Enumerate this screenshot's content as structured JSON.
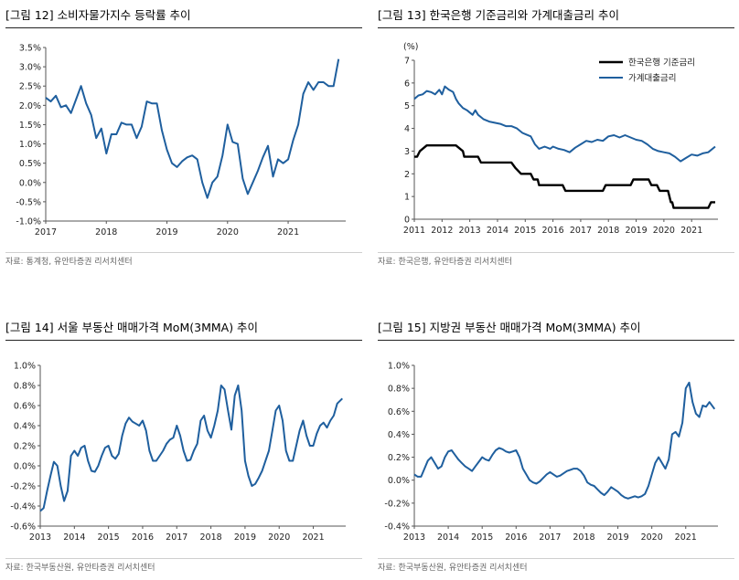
{
  "charts": [
    {
      "title": "[그림 12] 소비자물가지수 등락률 추이",
      "source": "자료: 통계청, 유안타증권 리서치센터",
      "chart_data": {
        "type": "line",
        "ylim": [
          -1.0,
          3.5
        ],
        "yticks": [
          "3.5%",
          "3.0%",
          "2.5%",
          "2.0%",
          "1.5%",
          "1.0%",
          "0.5%",
          "0.0%",
          "-0.5%",
          "-1.0%"
        ],
        "ytick_values": [
          3.5,
          3.0,
          2.5,
          2.0,
          1.5,
          1.0,
          0.5,
          0.0,
          -0.5,
          -1.0
        ],
        "xlim": [
          2017.0,
          2021.95
        ],
        "xticks": [
          "2017",
          "2018",
          "2019",
          "2020",
          "2021"
        ],
        "xtick_values": [
          2017,
          2018,
          2019,
          2020,
          2021
        ],
        "series": [
          {
            "color": "#1f5f9e",
            "x": [
              2017.0,
              2017.083,
              2017.167,
              2017.25,
              2017.333,
              2017.417,
              2017.5,
              2017.583,
              2017.667,
              2017.75,
              2017.833,
              2017.917,
              2018.0,
              2018.083,
              2018.167,
              2018.25,
              2018.333,
              2018.417,
              2018.5,
              2018.583,
              2018.667,
              2018.75,
              2018.833,
              2018.917,
              2019.0,
              2019.083,
              2019.167,
              2019.25,
              2019.333,
              2019.417,
              2019.5,
              2019.583,
              2019.667,
              2019.75,
              2019.833,
              2019.917,
              2020.0,
              2020.083,
              2020.167,
              2020.25,
              2020.333,
              2020.417,
              2020.5,
              2020.583,
              2020.667,
              2020.75,
              2020.833,
              2020.917,
              2021.0,
              2021.083,
              2021.167,
              2021.25,
              2021.333,
              2021.417,
              2021.5,
              2021.583,
              2021.667,
              2021.75,
              2021.833
            ],
            "y": [
              2.2,
              2.1,
              2.25,
              1.95,
              2.0,
              1.8,
              2.15,
              2.5,
              2.05,
              1.75,
              1.15,
              1.4,
              0.75,
              1.25,
              1.25,
              1.55,
              1.5,
              1.5,
              1.15,
              1.45,
              2.1,
              2.05,
              2.05,
              1.35,
              0.85,
              0.5,
              0.4,
              0.55,
              0.65,
              0.7,
              0.6,
              0.0,
              -0.4,
              0.0,
              0.15,
              0.7,
              1.5,
              1.05,
              1.0,
              0.1,
              -0.3,
              0.0,
              0.3,
              0.65,
              0.95,
              0.15,
              0.6,
              0.5,
              0.6,
              1.1,
              1.5,
              2.3,
              2.6,
              2.4,
              2.6,
              2.6,
              2.5,
              2.5,
              3.2
            ]
          }
        ]
      }
    },
    {
      "title": "[그림 13] 한국은행 기준금리와 가계대출금리 추이",
      "source": "자료: 한국은행, 유안타증권 리서치센터",
      "chart_data": {
        "type": "line",
        "unit_label": "(%)",
        "ylim": [
          0,
          7
        ],
        "yticks": [
          "7",
          "6",
          "5",
          "4",
          "3",
          "2",
          "1",
          "0"
        ],
        "ytick_values": [
          7,
          6,
          5,
          4,
          3,
          2,
          1,
          0
        ],
        "xlim": [
          2011.0,
          2021.95
        ],
        "xticks": [
          "2011",
          "2012",
          "2013",
          "2014",
          "2015",
          "2016",
          "2017",
          "2018",
          "2019",
          "2020",
          "2021"
        ],
        "xtick_values": [
          2011,
          2012,
          2013,
          2014,
          2015,
          2016,
          2017,
          2018,
          2019,
          2020,
          2021
        ],
        "legend": [
          "한국은행 기준금리",
          "가계대출금리"
        ],
        "series": [
          {
            "name": "한국은행 기준금리",
            "color": "#000000",
            "x": [
              2011.0,
              2011.1,
              2011.2,
              2011.45,
              2012.5,
              2012.75,
              2012.8,
              2013.3,
              2013.4,
              2014.5,
              2014.65,
              2014.85,
              2015.2,
              2015.3,
              2015.45,
              2015.5,
              2016.35,
              2016.45,
              2017.8,
              2017.9,
              2018.8,
              2018.9,
              2019.45,
              2019.55,
              2019.75,
              2019.85,
              2020.15,
              2020.25,
              2020.3,
              2020.35,
              2021.6,
              2021.7,
              2021.85
            ],
            "y": [
              2.75,
              2.75,
              3.0,
              3.25,
              3.25,
              3.0,
              2.75,
              2.75,
              2.5,
              2.5,
              2.25,
              2.0,
              2.0,
              1.75,
              1.75,
              1.5,
              1.5,
              1.25,
              1.25,
              1.5,
              1.5,
              1.75,
              1.75,
              1.5,
              1.5,
              1.25,
              1.25,
              0.75,
              0.75,
              0.5,
              0.5,
              0.75,
              0.75
            ]
          },
          {
            "name": "가계대출금리",
            "color": "#1f5f9e",
            "x": [
              2011.0,
              2011.15,
              2011.3,
              2011.45,
              2011.6,
              2011.75,
              2011.9,
              2012.0,
              2012.1,
              2012.25,
              2012.4,
              2012.5,
              2012.6,
              2012.75,
              2012.9,
              2013.0,
              2013.1,
              2013.2,
              2013.3,
              2013.5,
              2013.7,
              2013.9,
              2014.1,
              2014.3,
              2014.5,
              2014.7,
              2014.9,
              2015.0,
              2015.2,
              2015.35,
              2015.5,
              2015.7,
              2015.9,
              2016.0,
              2016.2,
              2016.4,
              2016.6,
              2016.8,
              2017.0,
              2017.2,
              2017.4,
              2017.6,
              2017.8,
              2018.0,
              2018.2,
              2018.4,
              2018.6,
              2018.8,
              2019.0,
              2019.2,
              2019.4,
              2019.6,
              2019.8,
              2020.0,
              2020.2,
              2020.4,
              2020.6,
              2020.8,
              2021.0,
              2021.2,
              2021.4,
              2021.6,
              2021.85
            ],
            "y": [
              5.3,
              5.45,
              5.5,
              5.65,
              5.6,
              5.5,
              5.7,
              5.5,
              5.85,
              5.7,
              5.6,
              5.3,
              5.1,
              4.9,
              4.8,
              4.7,
              4.6,
              4.8,
              4.6,
              4.4,
              4.3,
              4.25,
              4.2,
              4.1,
              4.1,
              4.0,
              3.8,
              3.75,
              3.65,
              3.3,
              3.1,
              3.2,
              3.1,
              3.2,
              3.1,
              3.05,
              2.95,
              3.15,
              3.3,
              3.45,
              3.4,
              3.5,
              3.45,
              3.65,
              3.7,
              3.6,
              3.7,
              3.6,
              3.5,
              3.45,
              3.3,
              3.1,
              3.0,
              2.95,
              2.9,
              2.75,
              2.55,
              2.7,
              2.85,
              2.8,
              2.9,
              2.95,
              3.2
            ]
          }
        ]
      }
    },
    {
      "title": "[그림 14] 서울 부동산 매매가격 MoM(3MMA) 추이",
      "source": "자료: 한국부동산원, 유안타증권 리서치센터",
      "chart_data": {
        "type": "line",
        "ylim": [
          -0.6,
          1.0
        ],
        "yticks": [
          "1.0%",
          "0.8%",
          "0.6%",
          "0.4%",
          "0.2%",
          "0.0%",
          "-0.2%",
          "-0.4%",
          "-0.6%"
        ],
        "ytick_values": [
          1.0,
          0.8,
          0.6,
          0.4,
          0.2,
          0.0,
          -0.2,
          -0.4,
          -0.6
        ],
        "xlim": [
          2013.0,
          2021.95
        ],
        "xticks": [
          "2013",
          "2014",
          "2015",
          "2016",
          "2017",
          "2018",
          "2019",
          "2020",
          "2021"
        ],
        "xtick_values": [
          2013,
          2014,
          2015,
          2016,
          2017,
          2018,
          2019,
          2020,
          2021
        ],
        "series": [
          {
            "color": "#1f5f9e",
            "x": [
              2013.0,
              2013.1,
              2013.2,
              2013.3,
              2013.4,
              2013.5,
              2013.6,
              2013.7,
              2013.8,
              2013.9,
              2014.0,
              2014.1,
              2014.2,
              2014.3,
              2014.4,
              2014.5,
              2014.6,
              2014.7,
              2014.8,
              2014.9,
              2015.0,
              2015.1,
              2015.2,
              2015.3,
              2015.4,
              2015.5,
              2015.6,
              2015.7,
              2015.8,
              2015.9,
              2016.0,
              2016.1,
              2016.2,
              2016.3,
              2016.4,
              2016.5,
              2016.6,
              2016.7,
              2016.8,
              2016.9,
              2017.0,
              2017.1,
              2017.2,
              2017.3,
              2017.4,
              2017.5,
              2017.6,
              2017.7,
              2017.8,
              2017.9,
              2018.0,
              2018.1,
              2018.2,
              2018.3,
              2018.4,
              2018.5,
              2018.6,
              2018.7,
              2018.8,
              2018.9,
              2019.0,
              2019.1,
              2019.2,
              2019.3,
              2019.4,
              2019.5,
              2019.6,
              2019.7,
              2019.8,
              2019.9,
              2020.0,
              2020.1,
              2020.2,
              2020.3,
              2020.4,
              2020.5,
              2020.6,
              2020.7,
              2020.8,
              2020.9,
              2021.0,
              2021.1,
              2021.2,
              2021.3,
              2021.4,
              2021.5,
              2021.6,
              2021.7,
              2021.85
            ],
            "y": [
              -0.45,
              -0.42,
              -0.25,
              -0.1,
              0.04,
              0.0,
              -0.2,
              -0.35,
              -0.25,
              0.1,
              0.15,
              0.1,
              0.18,
              0.2,
              0.05,
              -0.05,
              -0.06,
              0.0,
              0.1,
              0.18,
              0.2,
              0.1,
              0.07,
              0.12,
              0.3,
              0.42,
              0.48,
              0.44,
              0.42,
              0.4,
              0.45,
              0.35,
              0.15,
              0.05,
              0.05,
              0.1,
              0.15,
              0.22,
              0.26,
              0.28,
              0.4,
              0.3,
              0.15,
              0.05,
              0.06,
              0.15,
              0.22,
              0.45,
              0.5,
              0.35,
              0.28,
              0.4,
              0.55,
              0.8,
              0.76,
              0.55,
              0.36,
              0.7,
              0.8,
              0.55,
              0.05,
              -0.1,
              -0.2,
              -0.18,
              -0.12,
              -0.05,
              0.05,
              0.15,
              0.35,
              0.55,
              0.6,
              0.45,
              0.15,
              0.05,
              0.05,
              0.2,
              0.35,
              0.45,
              0.3,
              0.2,
              0.2,
              0.32,
              0.4,
              0.43,
              0.38,
              0.45,
              0.5,
              0.62,
              0.67
            ]
          }
        ]
      }
    },
    {
      "title": "[그림 15] 지방권 부동산 매매가격 MoM(3MMA) 추이",
      "source": "자료: 한국부동산원, 유안타증권 리서치센터",
      "chart_data": {
        "type": "line",
        "ylim": [
          -0.4,
          1.0
        ],
        "yticks": [
          "1.0%",
          "0.8%",
          "0.6%",
          "0.4%",
          "0.2%",
          "0.0%",
          "-0.2%",
          "-0.4%"
        ],
        "ytick_values": [
          1.0,
          0.8,
          0.6,
          0.4,
          0.2,
          0.0,
          -0.2,
          -0.4
        ],
        "xlim": [
          2013.0,
          2021.95
        ],
        "xticks": [
          "2013",
          "2014",
          "2015",
          "2016",
          "2017",
          "2018",
          "2019",
          "2020",
          "2021"
        ],
        "xtick_values": [
          2013,
          2014,
          2015,
          2016,
          2017,
          2018,
          2019,
          2020,
          2021
        ],
        "series": [
          {
            "color": "#1f5f9e",
            "x": [
              2013.0,
              2013.1,
              2013.2,
              2013.3,
              2013.4,
              2013.5,
              2013.6,
              2013.7,
              2013.8,
              2013.9,
              2014.0,
              2014.1,
              2014.2,
              2014.3,
              2014.4,
              2014.5,
              2014.6,
              2014.7,
              2014.8,
              2014.9,
              2015.0,
              2015.1,
              2015.2,
              2015.3,
              2015.4,
              2015.5,
              2015.6,
              2015.7,
              2015.8,
              2015.9,
              2016.0,
              2016.1,
              2016.2,
              2016.3,
              2016.4,
              2016.5,
              2016.6,
              2016.7,
              2016.8,
              2016.9,
              2017.0,
              2017.1,
              2017.2,
              2017.3,
              2017.4,
              2017.5,
              2017.6,
              2017.7,
              2017.8,
              2017.9,
              2018.0,
              2018.1,
              2018.2,
              2018.3,
              2018.4,
              2018.5,
              2018.6,
              2018.7,
              2018.8,
              2018.9,
              2019.0,
              2019.1,
              2019.2,
              2019.3,
              2019.4,
              2019.5,
              2019.6,
              2019.7,
              2019.8,
              2019.9,
              2020.0,
              2020.1,
              2020.2,
              2020.3,
              2020.4,
              2020.5,
              2020.6,
              2020.7,
              2020.8,
              2020.9,
              2021.0,
              2021.1,
              2021.2,
              2021.3,
              2021.4,
              2021.5,
              2021.6,
              2021.7,
              2021.85
            ],
            "y": [
              0.05,
              0.03,
              0.03,
              0.1,
              0.17,
              0.2,
              0.15,
              0.1,
              0.12,
              0.2,
              0.25,
              0.26,
              0.22,
              0.18,
              0.15,
              0.12,
              0.1,
              0.08,
              0.12,
              0.16,
              0.2,
              0.18,
              0.17,
              0.22,
              0.26,
              0.28,
              0.27,
              0.25,
              0.24,
              0.25,
              0.26,
              0.2,
              0.1,
              0.05,
              0.0,
              -0.02,
              -0.03,
              -0.01,
              0.02,
              0.05,
              0.07,
              0.05,
              0.03,
              0.04,
              0.06,
              0.08,
              0.09,
              0.1,
              0.1,
              0.08,
              0.04,
              -0.02,
              -0.04,
              -0.05,
              -0.08,
              -0.11,
              -0.13,
              -0.1,
              -0.06,
              -0.08,
              -0.1,
              -0.13,
              -0.15,
              -0.16,
              -0.15,
              -0.14,
              -0.15,
              -0.14,
              -0.12,
              -0.05,
              0.05,
              0.15,
              0.2,
              0.15,
              0.1,
              0.18,
              0.4,
              0.42,
              0.38,
              0.5,
              0.8,
              0.85,
              0.68,
              0.58,
              0.55,
              0.65,
              0.64,
              0.68,
              0.62
            ]
          }
        ]
      }
    }
  ]
}
